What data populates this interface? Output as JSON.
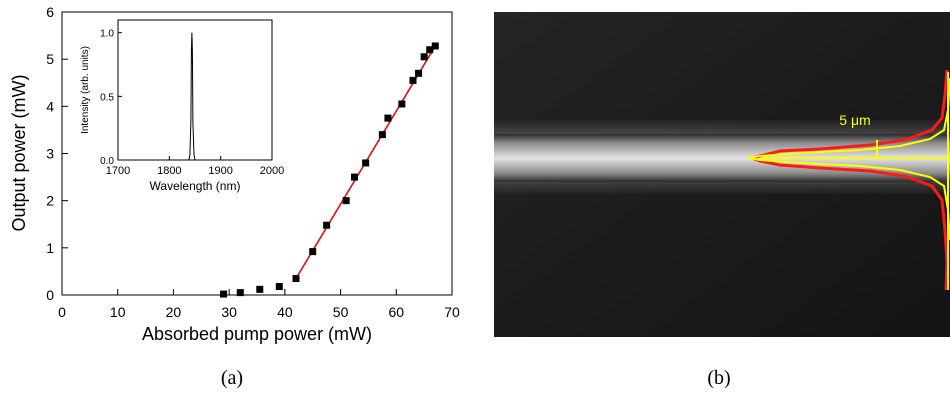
{
  "panels": {
    "a": {
      "caption": "(a)"
    },
    "b": {
      "caption": "(b)",
      "scale_label": "5 μm",
      "colors": {
        "background": "#1a1a1a",
        "beam": "#d8d8d8",
        "fit_curve": "#ffff00",
        "measured_profile": "#ff1a1a"
      }
    }
  },
  "chart_data": [
    {
      "type": "scatter",
      "xlabel": "Absorbed pump power (mW)",
      "ylabel": "Output power (mW)",
      "xlim": [
        0,
        70
      ],
      "ylim": [
        0,
        6
      ],
      "xticks": [
        "0",
        "10",
        "20",
        "30",
        "40",
        "50",
        "60",
        "70"
      ],
      "yticks": [
        "0",
        "1",
        "2",
        "3",
        "4",
        "5",
        "6"
      ],
      "series": [
        {
          "marker": "square",
          "color": "#000000",
          "points": [
            [
              29,
              0.02
            ],
            [
              32,
              0.05
            ],
            [
              35.5,
              0.12
            ],
            [
              39,
              0.18
            ],
            [
              42,
              0.35
            ],
            [
              45,
              0.92
            ],
            [
              47.5,
              1.48
            ],
            [
              51,
              2.0
            ],
            [
              52.5,
              2.5
            ],
            [
              54.5,
              2.8
            ],
            [
              57.5,
              3.4
            ],
            [
              58.5,
              3.75
            ],
            [
              61,
              4.05
            ],
            [
              63,
              4.55
            ],
            [
              64,
              4.7
            ],
            [
              65,
              5.05
            ],
            [
              66,
              5.2
            ],
            [
              67,
              5.28
            ]
          ]
        },
        {
          "kind": "fit-line",
          "color": "#e01010",
          "points": [
            [
              42,
              0.35
            ],
            [
              67,
              5.28
            ]
          ]
        }
      ],
      "grid": false
    },
    {
      "type": "line",
      "role": "inset",
      "xlabel": "Wavelength (nm)",
      "ylabel": "Intensity (arb. units)",
      "xlim": [
        1700,
        2000
      ],
      "ylim": [
        0,
        1.1
      ],
      "xticks": [
        "1700",
        "1800",
        "1900",
        "2000"
      ],
      "yticks": [
        "0.0",
        "0.5",
        "1.0"
      ],
      "series": [
        {
          "color": "#000000",
          "points": [
            [
              1700,
              0
            ],
            [
              1838,
              0
            ],
            [
              1840,
              0.04
            ],
            [
              1842,
              0.3
            ],
            [
              1843,
              0.85
            ],
            [
              1844,
              1.0
            ],
            [
              1845,
              0.85
            ],
            [
              1846,
              0.3
            ],
            [
              1848,
              0.04
            ],
            [
              1850,
              0
            ],
            [
              2000,
              0
            ]
          ]
        }
      ],
      "grid": false
    }
  ]
}
